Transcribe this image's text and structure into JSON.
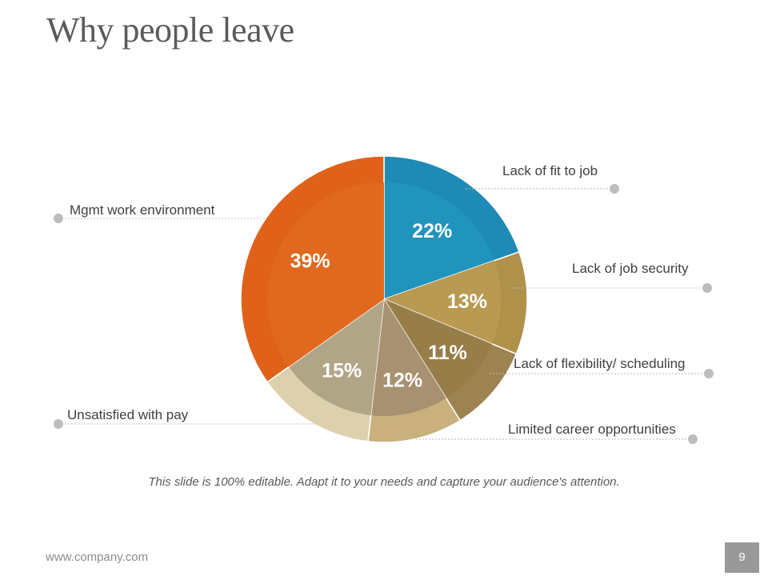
{
  "slide": {
    "title": "Why people leave",
    "caption": "This slide is 100% editable. Adapt it to your needs and capture your audience's attention.",
    "footer_url": "www.company.com",
    "page_number": "9"
  },
  "chart_data": {
    "type": "pie",
    "categories": [
      "Lack of fit to job",
      "Lack of job security",
      "Lack of flexibility/ scheduling",
      "Limited career opportunities",
      "Unsatisfied with pay",
      "Mgmt work environment"
    ],
    "values": [
      22,
      13,
      11,
      12,
      15,
      39
    ],
    "data_labels": [
      "22%",
      "13%",
      "11%",
      "12%",
      "15%",
      "39%"
    ],
    "colors": [
      "#1d8bb5",
      "#b0914a",
      "#9c8350",
      "#c9b07c",
      "#ddd0ad",
      "#e0621a"
    ],
    "inner_colors": [
      "#2194bd",
      "#b89a52",
      "#977e49",
      "#a89170",
      "#b0a586",
      "#e0691f"
    ],
    "legend": "callouts"
  }
}
